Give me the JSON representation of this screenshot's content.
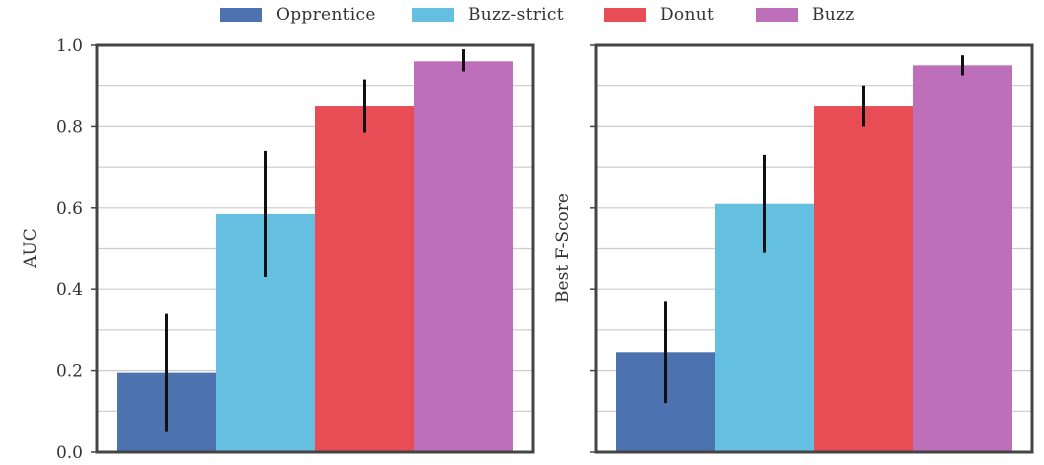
{
  "legend": {
    "items": [
      {
        "label": "Opprentice",
        "color": "#4c72b0"
      },
      {
        "label": "Buzz-strict",
        "color": "#64bfe0"
      },
      {
        "label": "Donut",
        "color": "#e84d55"
      },
      {
        "label": "Buzz",
        "color": "#bd6fba"
      }
    ]
  },
  "colors": {
    "axis": "#444444",
    "grid": "#cccccc",
    "errorbar": "#111111",
    "text": "#333333"
  },
  "chart_data": [
    {
      "type": "bar",
      "title": "",
      "xlabel": "",
      "ylabel": "AUC",
      "ylim": [
        0,
        1.0
      ],
      "yticks": [
        0.0,
        0.2,
        0.4,
        0.6,
        0.8,
        1.0
      ],
      "ytick_labels": [
        "0.0",
        "0.2",
        "0.4",
        "0.6",
        "0.8",
        "1.0"
      ],
      "series": [
        {
          "name": "Opprentice",
          "value": 0.195,
          "err_low": 0.05,
          "err_high": 0.34
        },
        {
          "name": "Buzz-strict",
          "value": 0.585,
          "err_low": 0.43,
          "err_high": 0.74
        },
        {
          "name": "Donut",
          "value": 0.85,
          "err_low": 0.785,
          "err_high": 0.915
        },
        {
          "name": "Buzz",
          "value": 0.96,
          "err_low": 0.935,
          "err_high": 0.99
        }
      ]
    },
    {
      "type": "bar",
      "title": "",
      "xlabel": "",
      "ylabel": "Best F-Score",
      "ylim": [
        0,
        1.0
      ],
      "yticks": [
        0.0,
        0.2,
        0.4,
        0.6,
        0.8,
        1.0
      ],
      "ytick_labels": [],
      "series": [
        {
          "name": "Opprentice",
          "value": 0.245,
          "err_low": 0.12,
          "err_high": 0.37
        },
        {
          "name": "Buzz-strict",
          "value": 0.61,
          "err_low": 0.49,
          "err_high": 0.73
        },
        {
          "name": "Donut",
          "value": 0.85,
          "err_low": 0.8,
          "err_high": 0.9
        },
        {
          "name": "Buzz",
          "value": 0.95,
          "err_low": 0.925,
          "err_high": 0.975
        }
      ]
    }
  ]
}
